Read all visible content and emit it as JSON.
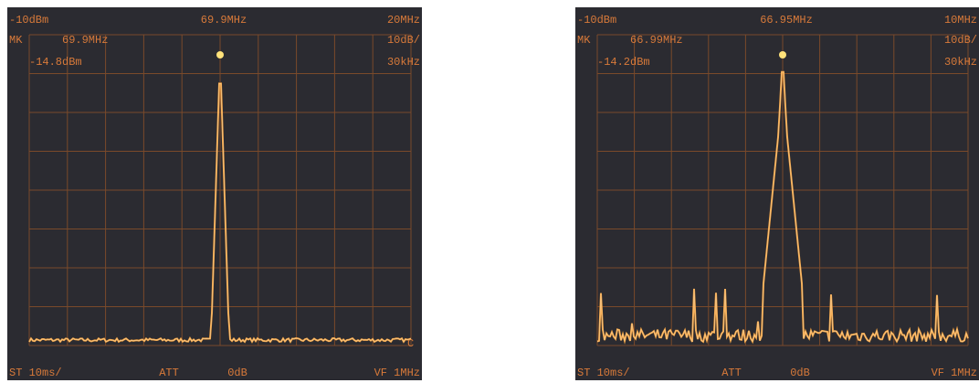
{
  "panels": [
    {
      "ref_level": "-10dBm",
      "center_freq": "69.9MHz",
      "span": "20MHz",
      "marker_label": "MK",
      "marker_freq": "69.9MHz",
      "scale": "10dB/",
      "marker_level": "-14.8dBm",
      "rbw": "30kHz",
      "sweep": "ST 10ms/",
      "att_label": "ATT",
      "att": "0dB",
      "vbw": "VF 1MHz",
      "edge_mark": "C"
    },
    {
      "ref_level": "-10dBm",
      "center_freq": "66.95MHz",
      "span": "10MHz",
      "marker_label": "MK",
      "marker_freq": "66.99MHz",
      "scale": "10dB/",
      "marker_level": "-14.2dBm",
      "rbw": "30kHz",
      "sweep": "ST 10ms/",
      "att_label": "ATT",
      "att": "0dB",
      "vbw": "VF 1MHz"
    }
  ]
}
